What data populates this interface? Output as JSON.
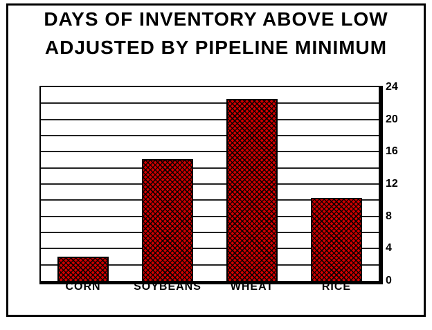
{
  "title": {
    "line1": "DAYS OF INVENTORY ABOVE LOW",
    "line2": "ADJUSTED BY PIPELINE MINIMUM"
  },
  "chart_data": {
    "type": "bar",
    "title": "DAYS OF INVENTORY ABOVE LOW ADJUSTED BY PIPELINE MINIMUM",
    "categories": [
      "CORN",
      "SOYBEANS",
      "WHEAT",
      "RICE"
    ],
    "values": [
      3.0,
      15.1,
      22.5,
      10.3
    ],
    "xlabel": "",
    "ylabel": "",
    "ylim": [
      0,
      24
    ],
    "yticks": [
      0,
      4,
      8,
      12,
      16,
      20,
      24
    ],
    "gridline_step": 2,
    "grid": true,
    "y_axis_side": "right",
    "legend": "none",
    "bar_fill_color": "#d10000",
    "bar_pattern": "black-weave-hatch",
    "bar_border_color": "#000000",
    "gridline_color": "#222222",
    "frame_color": "#000000",
    "background_color": "#ffffff",
    "text_color": "#000000"
  }
}
